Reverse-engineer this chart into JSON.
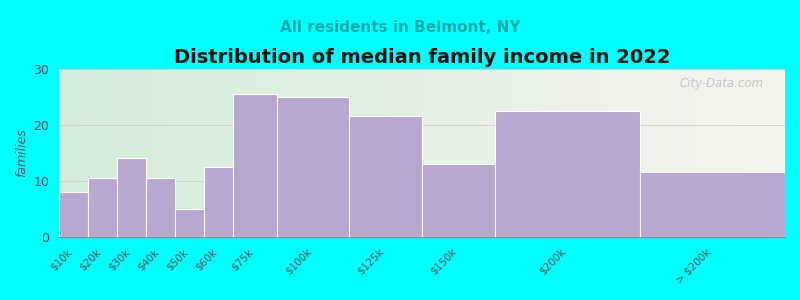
{
  "title": "Distribution of median family income in 2022",
  "subtitle": "All residents in Belmont, NY",
  "title_fontsize": 14,
  "subtitle_fontsize": 11,
  "subtitle_color": "#00AAAA",
  "ylabel": "families",
  "background_color": "#00FFFF",
  "bar_color": "#B8A8D0",
  "bar_edge_color": "#FFFFFF",
  "watermark": "City-Data.com",
  "fig_width": 8.0,
  "fig_height": 3.0,
  "ylim": [
    0,
    30
  ],
  "yticks": [
    0,
    10,
    20,
    30
  ],
  "bar_lefts": [
    0,
    10,
    20,
    30,
    40,
    50,
    60,
    75,
    100,
    125,
    150,
    200
  ],
  "bar_widths": [
    10,
    10,
    10,
    10,
    10,
    10,
    15,
    25,
    25,
    25,
    50,
    50
  ],
  "bar_heights": [
    8,
    10.5,
    14,
    10.5,
    5,
    12.5,
    25.5,
    25,
    21.5,
    13,
    22.5,
    11.5
  ],
  "tick_positions": [
    5,
    15,
    25,
    35,
    45,
    55,
    67.5,
    87.5,
    112.5,
    137.5,
    175,
    225
  ],
  "tick_labels": [
    "$10k",
    "$20k",
    "$30k",
    "$40k",
    "$50k",
    "$60k",
    "$75k",
    "$100k",
    "$125k",
    "$150k",
    "$200k",
    "> $200k"
  ],
  "xlim": [
    0,
    250
  ]
}
